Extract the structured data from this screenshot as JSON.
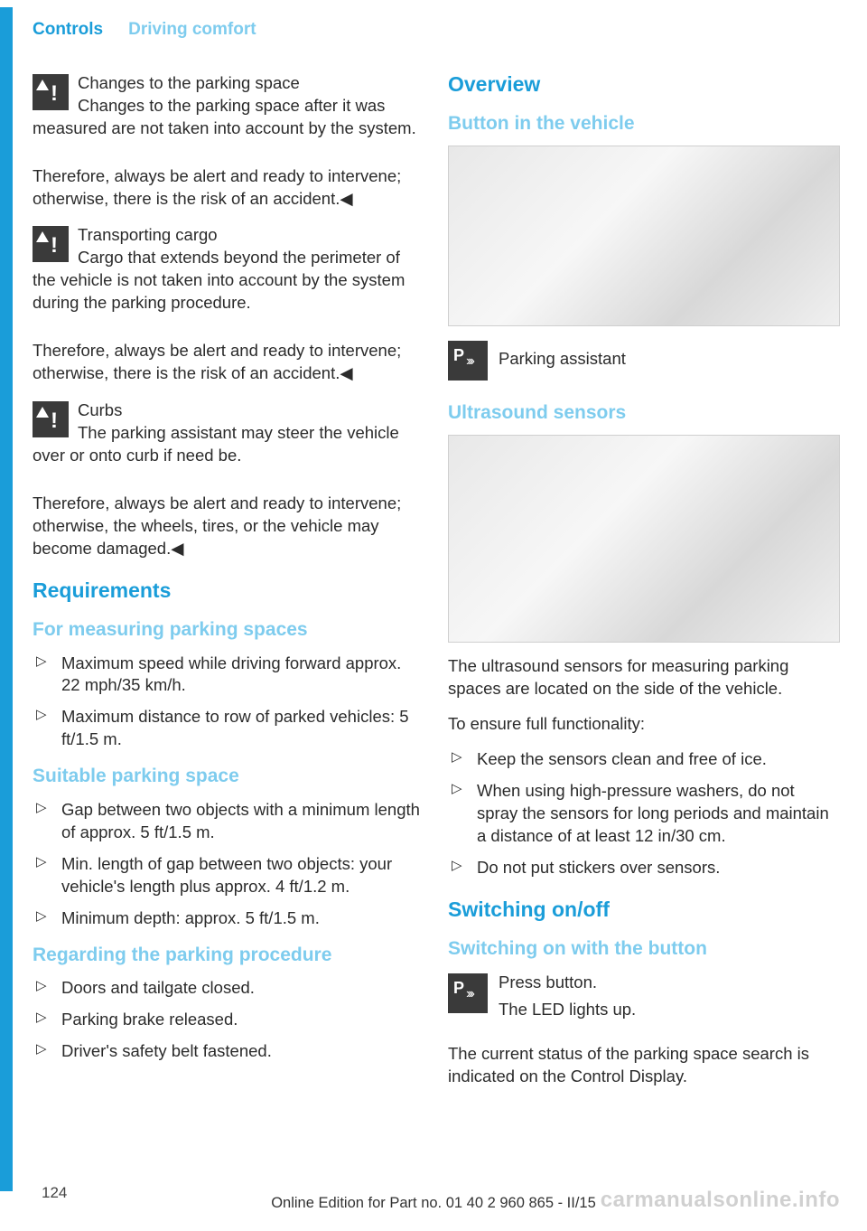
{
  "header": {
    "tab": "Controls",
    "section": "Driving comfort"
  },
  "left": {
    "warn1": {
      "title": "Changes to the parking space",
      "body": "Changes to the parking space after it was measured are not taken into account by the system.",
      "after": "Therefore, always be alert and ready to intervene; otherwise, there is the risk of an accident.◀"
    },
    "warn2": {
      "title": "Transporting cargo",
      "body": "Cargo that extends beyond the perimeter of the vehicle is not taken into account by the system during the parking procedure.",
      "after": "Therefore, always be alert and ready to intervene; otherwise, there is the risk of an accident.◀"
    },
    "warn3": {
      "title": "Curbs",
      "body": "The parking assistant may steer the vehicle over or onto curb if need be.",
      "after": "Therefore, always be alert and ready to intervene; otherwise, the wheels, tires, or the vehicle may become damaged.◀"
    },
    "requirements": "Requirements",
    "measuring_h": "For measuring parking spaces",
    "measuring": [
      "Maximum speed while driving forward approx. 22 mph/35 km/h.",
      "Maximum distance to row of parked vehicles: 5 ft/1.5 m."
    ],
    "suitable_h": "Suitable parking space",
    "suitable": [
      "Gap between two objects with a minimum length of approx. 5 ft/1.5 m.",
      "Min. length of gap between two objects: your vehicle's length plus approx. 4 ft/1.2 m.",
      "Minimum depth: approx. 5 ft/1.5 m."
    ],
    "regarding_h": "Regarding the parking procedure",
    "regarding": [
      "Doors and tailgate closed.",
      "Parking brake released.",
      "Driver's safety belt fastened."
    ]
  },
  "right": {
    "overview": "Overview",
    "button_h": "Button in the vehicle",
    "pa_label": "Parking assistant",
    "ultra_h": "Ultrasound sensors",
    "ultra_p1": "The ultrasound sensors for measuring parking spaces are located on the side of the vehicle.",
    "ultra_p2": "To ensure full functionality:",
    "ultra_list": [
      "Keep the sensors clean and free of ice.",
      "When using high-pressure washers, do not spray the sensors for long periods and maintain a distance of at least 12 in/30 cm.",
      "Do not put stickers over sensors."
    ],
    "switch_h": "Switching on/off",
    "switch_sub": "Switching on with the button",
    "press": "Press button.",
    "led": "The LED lights up.",
    "status": "The current status of the parking space search is indicated on the Control Display."
  },
  "footer": {
    "page": "124",
    "line": "Online Edition for Part no. 01 40 2 960 865 - II/15",
    "watermark": "carmanualsonline.info"
  }
}
